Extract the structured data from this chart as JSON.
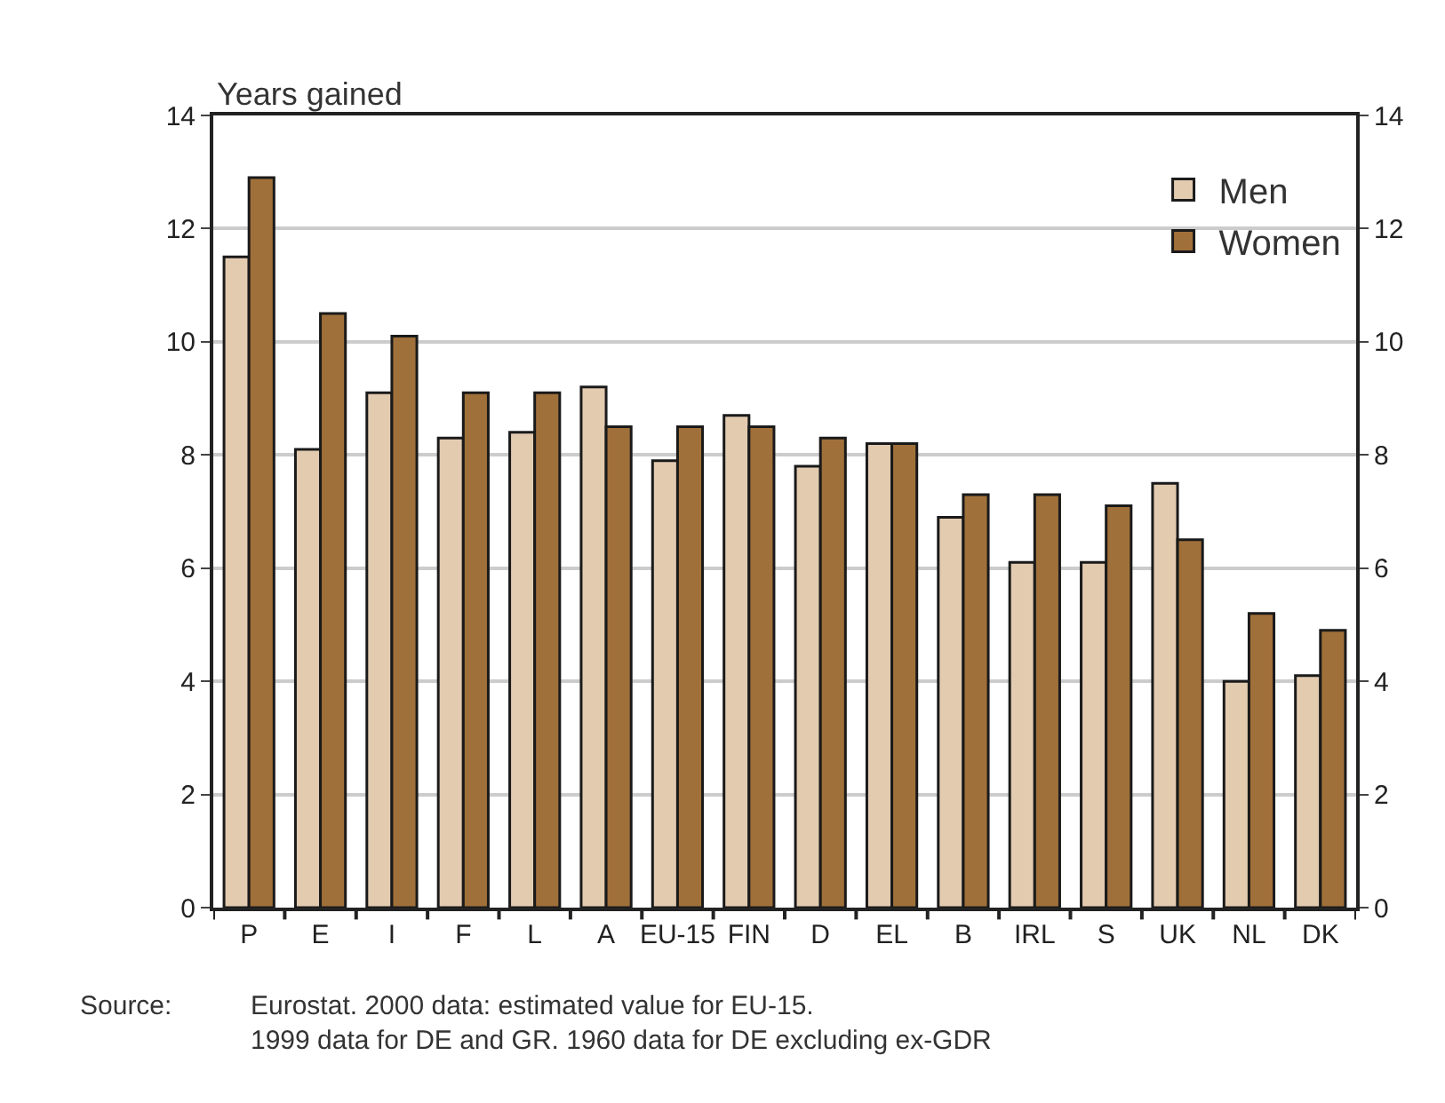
{
  "chart_data": {
    "type": "bar",
    "ylabel": "Years gained",
    "categories": [
      "P",
      "E",
      "I",
      "F",
      "L",
      "A",
      "EU-15",
      "FIN",
      "D",
      "EL",
      "B",
      "IRL",
      "S",
      "UK",
      "NL",
      "DK"
    ],
    "series": [
      {
        "name": "Men",
        "color": "#e3cbb0",
        "values": [
          11.5,
          8.1,
          9.1,
          8.3,
          8.4,
          9.2,
          7.9,
          8.7,
          7.8,
          8.2,
          6.9,
          6.1,
          6.1,
          7.5,
          4.0,
          4.1
        ]
      },
      {
        "name": "Women",
        "color": "#a0703a",
        "values": [
          12.9,
          10.5,
          10.1,
          9.1,
          9.1,
          8.5,
          8.5,
          8.5,
          8.3,
          8.2,
          7.3,
          7.3,
          7.1,
          6.5,
          5.2,
          4.9
        ]
      }
    ],
    "ylim": [
      0,
      14
    ],
    "yticks": [
      0,
      2,
      4,
      6,
      8,
      10,
      12,
      14
    ],
    "y2lim": [
      0,
      14
    ],
    "y2ticks": [
      0,
      2,
      4,
      6,
      8,
      10,
      12,
      14
    ],
    "grid": "y",
    "legend": "top right",
    "annotations": [
      "Source:",
      "Eurostat. 2000 data: estimated value for EU-15.\n1999 data for DE and GR. 1960 data for DE excluding ex-GDR"
    ]
  }
}
